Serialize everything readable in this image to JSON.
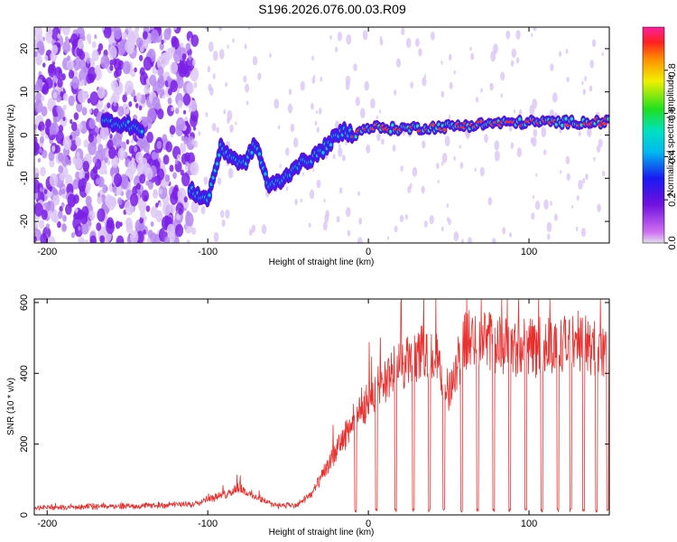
{
  "chart_data": [
    {
      "type": "heatmap",
      "title": "S196.2026.076.00.03.R09",
      "xlabel": "Height of straight line (km)",
      "ylabel": "Frequency (Hz)",
      "xlim": [
        -208,
        150
      ],
      "ylim": [
        -25,
        25
      ],
      "xticks": [
        -200,
        -100,
        0,
        100
      ],
      "yticks": [
        -20,
        -10,
        0,
        10,
        20
      ],
      "colorbar": {
        "label": "Normalized spectral amplitude",
        "range": [
          0,
          1
        ],
        "ticks": [
          0.0,
          0.2,
          0.4,
          0.6,
          0.8
        ],
        "colormap": "rainbow: magenta-blue-cyan-green-yellow-red"
      },
      "ridge": {
        "description": "Frequency of strongest signal vs height",
        "x": [
          -160,
          -145,
          -110,
          -100,
          -92,
          -85,
          -78,
          -70,
          -62,
          -52,
          -45,
          -38,
          -30,
          -22,
          -15,
          -8,
          0,
          10,
          20,
          40,
          60,
          80,
          100,
          120,
          150
        ],
        "y": [
          3,
          2,
          -13,
          -15,
          -3,
          -5,
          -7,
          -2,
          -12,
          -10,
          -7,
          -6,
          -4,
          -1,
          1,
          0,
          2,
          1.5,
          1.5,
          1.8,
          2.2,
          2.8,
          3,
          3,
          3
        ]
      }
    },
    {
      "type": "line",
      "xlabel": "Height of straight line (km)",
      "ylabel": "SNR (10 * v/v)",
      "xlim": [
        -208,
        150
      ],
      "ylim": [
        0,
        610
      ],
      "xticks": [
        -200,
        -100,
        0,
        100
      ],
      "yticks": [
        0,
        200,
        400,
        600
      ],
      "series_color": "#e8312f",
      "envelope": {
        "x": [
          -208,
          -150,
          -110,
          -100,
          -90,
          -80,
          -75,
          -60,
          -45,
          -35,
          -25,
          -15,
          -10,
          -5,
          0,
          10,
          20,
          30,
          40,
          50,
          55,
          60,
          70,
          80,
          90,
          100,
          110,
          120,
          130,
          140,
          150
        ],
        "y": [
          20,
          25,
          30,
          45,
          55,
          80,
          60,
          30,
          25,
          60,
          140,
          220,
          260,
          300,
          320,
          380,
          420,
          450,
          460,
          350,
          420,
          490,
          500,
          480,
          470,
          480,
          470,
          480,
          490,
          470,
          450
        ]
      },
      "dropouts_x": [
        -8,
        5,
        17,
        28,
        38,
        47,
        58,
        68,
        78,
        88,
        98,
        108,
        118,
        126,
        134,
        142,
        149
      ]
    }
  ]
}
